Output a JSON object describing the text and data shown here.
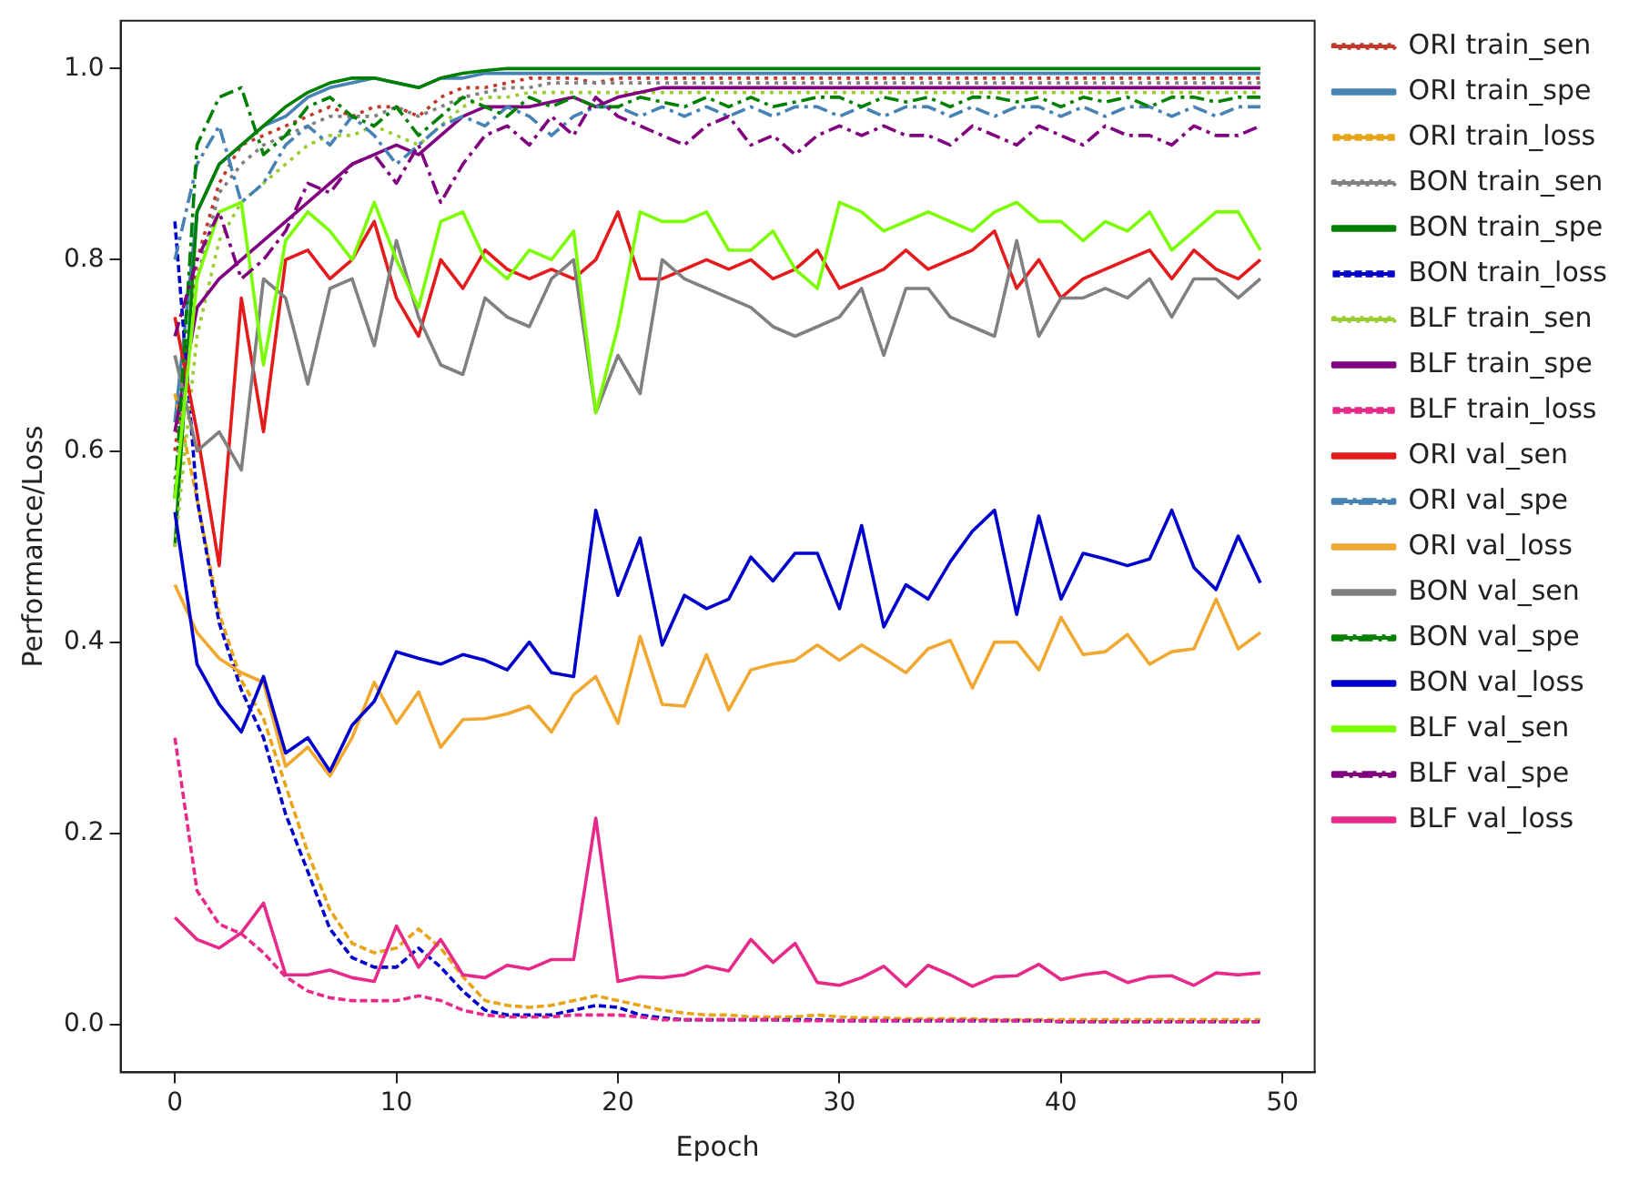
{
  "chart_data": {
    "type": "line",
    "xlabel": "Epoch",
    "ylabel": "Performance/Loss",
    "x": [
      0,
      1,
      2,
      3,
      4,
      5,
      6,
      7,
      8,
      9,
      10,
      11,
      12,
      13,
      14,
      15,
      16,
      17,
      18,
      19,
      20,
      21,
      22,
      23,
      24,
      25,
      26,
      27,
      28,
      29,
      30,
      31,
      32,
      33,
      34,
      35,
      36,
      37,
      38,
      39,
      40,
      41,
      42,
      43,
      44,
      45,
      46,
      47,
      48,
      49
    ],
    "xlim": [
      -2.45,
      51.45
    ],
    "xticks": [
      0,
      10,
      20,
      30,
      40,
      50
    ],
    "ylim": [
      -0.05,
      1.05
    ],
    "yticks": [
      {
        "value": 0,
        "label": "0.0"
      },
      {
        "value": 0.2,
        "label": "0.2"
      },
      {
        "value": 0.4,
        "label": "0.4"
      },
      {
        "value": 0.6,
        "label": "0.6"
      },
      {
        "value": 0.8,
        "label": "0.8"
      },
      {
        "value": 1,
        "label": "1.0"
      }
    ],
    "grid": false,
    "legend": "right",
    "marker": "none",
    "series": [
      {
        "name": "ORI train_sen",
        "color": "#c0392b",
        "line_style": "dotted",
        "values": [
          0.6,
          0.8,
          0.88,
          0.92,
          0.93,
          0.94,
          0.95,
          0.96,
          0.95,
          0.96,
          0.96,
          0.95,
          0.97,
          0.98,
          0.98,
          0.985,
          0.99,
          0.99,
          0.99,
          0.985,
          0.99,
          0.99,
          0.99,
          0.99,
          0.99,
          0.99,
          0.99,
          0.99,
          0.99,
          0.99,
          0.99,
          0.99,
          0.99,
          0.99,
          0.99,
          0.99,
          0.99,
          0.99,
          0.99,
          0.99,
          0.99,
          0.99,
          0.99,
          0.99,
          0.99,
          0.99,
          0.99,
          0.99,
          0.99,
          0.99
        ]
      },
      {
        "name": "ORI train_spe",
        "color": "#4682b4",
        "line_style": "solid",
        "values": [
          0.63,
          0.85,
          0.9,
          0.92,
          0.94,
          0.95,
          0.97,
          0.98,
          0.985,
          0.99,
          0.985,
          0.98,
          0.99,
          0.99,
          0.995,
          0.995,
          0.995,
          0.995,
          0.995,
          0.995,
          0.995,
          0.995,
          0.995,
          0.995,
          0.995,
          0.995,
          0.995,
          0.995,
          0.995,
          0.995,
          0.995,
          0.995,
          0.995,
          0.995,
          0.995,
          0.995,
          0.995,
          0.995,
          0.995,
          0.995,
          0.995,
          0.995,
          0.995,
          0.995,
          0.995,
          0.995,
          0.995,
          0.995,
          0.995,
          0.995
        ]
      },
      {
        "name": "ORI train_loss",
        "color": "#e8a317",
        "line_style": "dashed",
        "values": [
          0.66,
          0.55,
          0.43,
          0.36,
          0.32,
          0.25,
          0.18,
          0.12,
          0.085,
          0.075,
          0.08,
          0.1,
          0.08,
          0.05,
          0.025,
          0.02,
          0.018,
          0.02,
          0.025,
          0.03,
          0.025,
          0.02,
          0.015,
          0.012,
          0.01,
          0.01,
          0.008,
          0.008,
          0.008,
          0.01,
          0.008,
          0.007,
          0.007,
          0.006,
          0.006,
          0.006,
          0.006,
          0.005,
          0.005,
          0.005,
          0.005,
          0.005,
          0.005,
          0.005,
          0.005,
          0.005,
          0.005,
          0.005,
          0.005,
          0.005
        ]
      },
      {
        "name": "BON train_sen",
        "color": "#808080",
        "line_style": "dotted",
        "values": [
          0.57,
          0.78,
          0.87,
          0.9,
          0.92,
          0.93,
          0.94,
          0.95,
          0.95,
          0.95,
          0.96,
          0.95,
          0.96,
          0.97,
          0.975,
          0.98,
          0.98,
          0.985,
          0.985,
          0.985,
          0.985,
          0.985,
          0.985,
          0.985,
          0.985,
          0.985,
          0.985,
          0.985,
          0.985,
          0.985,
          0.985,
          0.985,
          0.985,
          0.985,
          0.985,
          0.985,
          0.985,
          0.985,
          0.985,
          0.985,
          0.985,
          0.985,
          0.985,
          0.985,
          0.985,
          0.985,
          0.985,
          0.985,
          0.985,
          0.985
        ]
      },
      {
        "name": "BON train_spe",
        "color": "#008000",
        "line_style": "solid",
        "values": [
          0.5,
          0.85,
          0.9,
          0.92,
          0.94,
          0.96,
          0.975,
          0.985,
          0.99,
          0.99,
          0.985,
          0.98,
          0.99,
          0.995,
          0.998,
          1,
          1,
          1,
          1,
          1,
          1,
          1,
          1,
          1,
          1,
          1,
          1,
          1,
          1,
          1,
          1,
          1,
          1,
          1,
          1,
          1,
          1,
          1,
          1,
          1,
          1,
          1,
          1,
          1,
          1,
          1,
          1,
          1,
          1,
          1
        ]
      },
      {
        "name": "BON train_loss",
        "color": "#0000cd",
        "line_style": "dashed",
        "values": [
          0.84,
          0.55,
          0.42,
          0.35,
          0.3,
          0.22,
          0.16,
          0.1,
          0.07,
          0.06,
          0.06,
          0.08,
          0.06,
          0.035,
          0.015,
          0.01,
          0.01,
          0.01,
          0.015,
          0.02,
          0.018,
          0.01,
          0.007,
          0.005,
          0.005,
          0.005,
          0.005,
          0.005,
          0.005,
          0.005,
          0.004,
          0.004,
          0.004,
          0.004,
          0.004,
          0.004,
          0.004,
          0.004,
          0.004,
          0.004,
          0.003,
          0.003,
          0.003,
          0.003,
          0.003,
          0.003,
          0.003,
          0.003,
          0.003,
          0.003
        ]
      },
      {
        "name": "BLF train_sen",
        "color": "#9acd32",
        "line_style": "dotted",
        "values": [
          0.5,
          0.72,
          0.82,
          0.86,
          0.88,
          0.9,
          0.92,
          0.93,
          0.93,
          0.94,
          0.93,
          0.92,
          0.94,
          0.96,
          0.97,
          0.97,
          0.975,
          0.975,
          0.975,
          0.975,
          0.975,
          0.975,
          0.975,
          0.975,
          0.975,
          0.975,
          0.975,
          0.975,
          0.975,
          0.975,
          0.975,
          0.975,
          0.975,
          0.975,
          0.975,
          0.975,
          0.975,
          0.975,
          0.975,
          0.975,
          0.975,
          0.975,
          0.975,
          0.975,
          0.975,
          0.975,
          0.975,
          0.975,
          0.975,
          0.975
        ]
      },
      {
        "name": "BLF train_spe",
        "color": "#800080",
        "line_style": "solid",
        "values": [
          0.62,
          0.75,
          0.78,
          0.8,
          0.82,
          0.84,
          0.86,
          0.88,
          0.9,
          0.91,
          0.92,
          0.91,
          0.93,
          0.95,
          0.96,
          0.96,
          0.96,
          0.965,
          0.97,
          0.96,
          0.97,
          0.975,
          0.98,
          0.98,
          0.98,
          0.98,
          0.98,
          0.98,
          0.98,
          0.98,
          0.98,
          0.98,
          0.98,
          0.98,
          0.98,
          0.98,
          0.98,
          0.98,
          0.98,
          0.98,
          0.98,
          0.98,
          0.98,
          0.98,
          0.98,
          0.98,
          0.98,
          0.98,
          0.98,
          0.98
        ]
      },
      {
        "name": "BLF train_loss",
        "color": "#e7298a",
        "line_style": "dashed",
        "values": [
          0.3,
          0.14,
          0.105,
          0.095,
          0.075,
          0.05,
          0.035,
          0.028,
          0.025,
          0.025,
          0.025,
          0.03,
          0.025,
          0.015,
          0.01,
          0.008,
          0.008,
          0.008,
          0.01,
          0.01,
          0.01,
          0.008,
          0.005,
          0.005,
          0.005,
          0.005,
          0.005,
          0.005,
          0.004,
          0.004,
          0.004,
          0.004,
          0.004,
          0.004,
          0.004,
          0.004,
          0.004,
          0.004,
          0.004,
          0.004,
          0.003,
          0.003,
          0.003,
          0.003,
          0.003,
          0.003,
          0.003,
          0.003,
          0.003,
          0.003
        ]
      },
      {
        "name": "ORI val_sen",
        "color": "#e41a1c",
        "line_style": "solid",
        "values": [
          0.74,
          0.62,
          0.48,
          0.76,
          0.62,
          0.8,
          0.81,
          0.78,
          0.8,
          0.84,
          0.76,
          0.72,
          0.8,
          0.77,
          0.81,
          0.79,
          0.78,
          0.79,
          0.78,
          0.8,
          0.85,
          0.78,
          0.78,
          0.79,
          0.8,
          0.79,
          0.8,
          0.78,
          0.79,
          0.81,
          0.77,
          0.78,
          0.79,
          0.81,
          0.79,
          0.8,
          0.81,
          0.83,
          0.77,
          0.8,
          0.76,
          0.78,
          0.79,
          0.8,
          0.81,
          0.78,
          0.81,
          0.79,
          0.78,
          0.8
        ]
      },
      {
        "name": "ORI val_spe",
        "color": "#4682b4",
        "line_style": "dashdot",
        "values": [
          0.8,
          0.9,
          0.94,
          0.86,
          0.88,
          0.92,
          0.94,
          0.92,
          0.95,
          0.93,
          0.9,
          0.92,
          0.94,
          0.95,
          0.94,
          0.96,
          0.95,
          0.93,
          0.95,
          0.96,
          0.96,
          0.95,
          0.96,
          0.95,
          0.96,
          0.95,
          0.96,
          0.95,
          0.96,
          0.96,
          0.95,
          0.96,
          0.95,
          0.96,
          0.96,
          0.95,
          0.96,
          0.95,
          0.96,
          0.96,
          0.95,
          0.96,
          0.95,
          0.96,
          0.96,
          0.95,
          0.96,
          0.95,
          0.96,
          0.96
        ]
      },
      {
        "name": "ORI val_loss",
        "color": "#f0a830",
        "line_style": "solid",
        "values": [
          0.46,
          0.41,
          0.383,
          0.368,
          0.358,
          0.27,
          0.29,
          0.26,
          0.3,
          0.358,
          0.315,
          0.348,
          0.29,
          0.319,
          0.32,
          0.325,
          0.333,
          0.306,
          0.345,
          0.364,
          0.315,
          0.406,
          0.335,
          0.333,
          0.387,
          0.329,
          0.371,
          0.377,
          0.381,
          0.397,
          0.381,
          0.397,
          0.383,
          0.368,
          0.393,
          0.402,
          0.352,
          0.4,
          0.4,
          0.371,
          0.426,
          0.387,
          0.39,
          0.408,
          0.377,
          0.39,
          0.393,
          0.445,
          0.393,
          0.41
        ]
      },
      {
        "name": "BON val_sen",
        "color": "#808080",
        "line_style": "solid",
        "values": [
          0.7,
          0.6,
          0.62,
          0.58,
          0.78,
          0.76,
          0.67,
          0.77,
          0.78,
          0.71,
          0.82,
          0.74,
          0.69,
          0.68,
          0.76,
          0.74,
          0.73,
          0.78,
          0.8,
          0.64,
          0.7,
          0.66,
          0.8,
          0.78,
          0.77,
          0.76,
          0.75,
          0.73,
          0.72,
          0.73,
          0.74,
          0.77,
          0.7,
          0.77,
          0.77,
          0.74,
          0.73,
          0.72,
          0.82,
          0.72,
          0.76,
          0.76,
          0.77,
          0.76,
          0.78,
          0.74,
          0.78,
          0.78,
          0.76,
          0.78
        ]
      },
      {
        "name": "BON val_spe",
        "color": "#008000",
        "line_style": "dashdot",
        "values": [
          0.55,
          0.92,
          0.97,
          0.98,
          0.91,
          0.93,
          0.96,
          0.97,
          0.95,
          0.94,
          0.96,
          0.93,
          0.95,
          0.97,
          0.96,
          0.95,
          0.97,
          0.96,
          0.97,
          0.96,
          0.96,
          0.97,
          0.965,
          0.96,
          0.97,
          0.96,
          0.97,
          0.96,
          0.965,
          0.97,
          0.97,
          0.96,
          0.97,
          0.965,
          0.97,
          0.96,
          0.97,
          0.97,
          0.965,
          0.97,
          0.96,
          0.97,
          0.965,
          0.97,
          0.96,
          0.97,
          0.97,
          0.965,
          0.97,
          0.97
        ]
      },
      {
        "name": "BON val_loss",
        "color": "#0000cd",
        "line_style": "solid",
        "values": [
          0.536,
          0.377,
          0.335,
          0.306,
          0.364,
          0.284,
          0.3,
          0.265,
          0.313,
          0.338,
          0.39,
          0.383,
          0.377,
          0.387,
          0.381,
          0.371,
          0.4,
          0.368,
          0.364,
          0.538,
          0.449,
          0.509,
          0.397,
          0.449,
          0.435,
          0.445,
          0.489,
          0.464,
          0.493,
          0.493,
          0.435,
          0.522,
          0.416,
          0.46,
          0.445,
          0.484,
          0.516,
          0.538,
          0.429,
          0.532,
          0.445,
          0.493,
          0.487,
          0.48,
          0.487,
          0.538,
          0.478,
          0.455,
          0.511,
          0.462
        ]
      },
      {
        "name": "BLF val_sen",
        "color": "#7cfc00",
        "line_style": "solid",
        "values": [
          0.55,
          0.78,
          0.85,
          0.86,
          0.69,
          0.82,
          0.85,
          0.83,
          0.8,
          0.86,
          0.8,
          0.75,
          0.84,
          0.85,
          0.8,
          0.78,
          0.81,
          0.8,
          0.83,
          0.64,
          0.73,
          0.85,
          0.84,
          0.84,
          0.85,
          0.81,
          0.81,
          0.83,
          0.79,
          0.77,
          0.86,
          0.85,
          0.83,
          0.84,
          0.85,
          0.84,
          0.83,
          0.85,
          0.86,
          0.84,
          0.84,
          0.82,
          0.84,
          0.83,
          0.85,
          0.81,
          0.83,
          0.85,
          0.85,
          0.81
        ]
      },
      {
        "name": "BLF val_spe",
        "color": "#800080",
        "line_style": "dashdot",
        "values": [
          0.72,
          0.8,
          0.85,
          0.78,
          0.8,
          0.83,
          0.88,
          0.87,
          0.9,
          0.91,
          0.88,
          0.92,
          0.86,
          0.9,
          0.93,
          0.94,
          0.92,
          0.95,
          0.93,
          0.97,
          0.95,
          0.94,
          0.93,
          0.92,
          0.94,
          0.95,
          0.92,
          0.93,
          0.91,
          0.93,
          0.94,
          0.93,
          0.94,
          0.93,
          0.93,
          0.92,
          0.94,
          0.93,
          0.92,
          0.94,
          0.93,
          0.92,
          0.94,
          0.93,
          0.93,
          0.92,
          0.94,
          0.93,
          0.93,
          0.94
        ]
      },
      {
        "name": "BLF val_loss",
        "color": "#e7298a",
        "line_style": "solid",
        "values": [
          0.112,
          0.089,
          0.08,
          0.096,
          0.127,
          0.052,
          0.052,
          0.057,
          0.049,
          0.045,
          0.103,
          0.06,
          0.089,
          0.052,
          0.049,
          0.062,
          0.058,
          0.068,
          0.068,
          0.216,
          0.045,
          0.05,
          0.049,
          0.052,
          0.061,
          0.056,
          0.089,
          0.065,
          0.085,
          0.044,
          0.041,
          0.049,
          0.061,
          0.04,
          0.062,
          0.052,
          0.04,
          0.05,
          0.051,
          0.063,
          0.047,
          0.052,
          0.055,
          0.044,
          0.05,
          0.051,
          0.041,
          0.054,
          0.052,
          0.054
        ]
      }
    ]
  }
}
